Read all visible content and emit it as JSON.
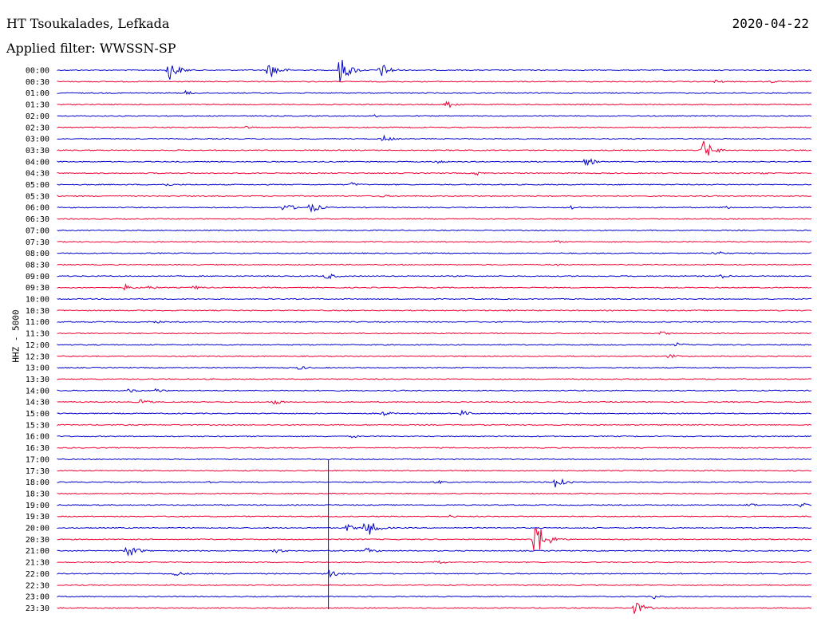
{
  "header": {
    "station": "HT Tsoukalades, Lefkada",
    "date": "2020-04-22",
    "filter": "Applied filter: WWSSN-SP",
    "channel": "HHZ - 5000"
  },
  "colors": {
    "even_trace": "#0000cc",
    "odd_trace": "#ee0033"
  },
  "traces": [
    {
      "time": "00:00",
      "events": [
        [
          0.147,
          14
        ],
        [
          0.28,
          12
        ],
        [
          0.374,
          18
        ],
        [
          0.428,
          10
        ]
      ]
    },
    {
      "time": "00:30",
      "events": [
        [
          0.87,
          3
        ],
        [
          0.945,
          2
        ]
      ]
    },
    {
      "time": "01:00",
      "events": [
        [
          0.17,
          3
        ]
      ]
    },
    {
      "time": "01:30",
      "events": [
        [
          0.515,
          6
        ]
      ]
    },
    {
      "time": "02:00",
      "events": [
        [
          0.42,
          2
        ]
      ]
    },
    {
      "time": "02:30",
      "events": [
        [
          0.25,
          2
        ]
      ]
    },
    {
      "time": "03:00",
      "events": [
        [
          0.43,
          5
        ]
      ]
    },
    {
      "time": "03:30",
      "events": [
        [
          0.855,
          14
        ]
      ]
    },
    {
      "time": "04:00",
      "events": [
        [
          0.5,
          3
        ],
        [
          0.7,
          6
        ]
      ]
    },
    {
      "time": "04:30",
      "events": [
        [
          0.555,
          3
        ],
        [
          0.93,
          2
        ]
      ]
    },
    {
      "time": "05:00",
      "events": [
        [
          0.14,
          3
        ],
        [
          0.39,
          3
        ]
      ]
    },
    {
      "time": "05:30",
      "events": [
        [
          0.43,
          2
        ]
      ]
    },
    {
      "time": "06:00",
      "events": [
        [
          0.3,
          6
        ],
        [
          0.335,
          7
        ],
        [
          0.68,
          3
        ],
        [
          0.88,
          3
        ]
      ]
    },
    {
      "time": "06:30",
      "events": []
    },
    {
      "time": "07:00",
      "events": []
    },
    {
      "time": "07:30",
      "events": [
        [
          0.66,
          2
        ]
      ]
    },
    {
      "time": "08:00",
      "events": [
        [
          0.87,
          4
        ]
      ]
    },
    {
      "time": "08:30",
      "events": [
        [
          0.66,
          2
        ]
      ]
    },
    {
      "time": "09:00",
      "events": [
        [
          0.355,
          5
        ],
        [
          0.88,
          3
        ]
      ]
    },
    {
      "time": "09:30",
      "events": [
        [
          0.09,
          4
        ],
        [
          0.12,
          3
        ],
        [
          0.18,
          3
        ]
      ]
    },
    {
      "time": "10:00",
      "events": []
    },
    {
      "time": "10:30",
      "events": [
        [
          0.6,
          2
        ]
      ]
    },
    {
      "time": "11:00",
      "events": [
        [
          0.13,
          2
        ]
      ]
    },
    {
      "time": "11:30",
      "events": [
        [
          0.8,
          3
        ]
      ]
    },
    {
      "time": "12:00",
      "events": [
        [
          0.82,
          3
        ]
      ]
    },
    {
      "time": "12:30",
      "events": [
        [
          0.81,
          3
        ]
      ]
    },
    {
      "time": "13:00",
      "events": [
        [
          0.32,
          3
        ]
      ]
    },
    {
      "time": "13:30",
      "events": []
    },
    {
      "time": "14:00",
      "events": [
        [
          0.095,
          3
        ],
        [
          0.13,
          3
        ]
      ]
    },
    {
      "time": "14:30",
      "events": [
        [
          0.11,
          4
        ],
        [
          0.285,
          4
        ]
      ]
    },
    {
      "time": "15:00",
      "events": [
        [
          0.43,
          4
        ],
        [
          0.535,
          4
        ]
      ]
    },
    {
      "time": "15:30",
      "events": []
    },
    {
      "time": "16:00",
      "events": [
        [
          0.39,
          2
        ]
      ]
    },
    {
      "time": "16:30",
      "events": []
    },
    {
      "time": "17:00",
      "events": []
    },
    {
      "time": "17:30",
      "events": []
    },
    {
      "time": "18:00",
      "events": [
        [
          0.66,
          10
        ],
        [
          0.2,
          2
        ],
        [
          0.5,
          3
        ]
      ]
    },
    {
      "time": "18:30",
      "events": []
    },
    {
      "time": "19:00",
      "events": [
        [
          0.915,
          3
        ],
        [
          0.985,
          3
        ]
      ]
    },
    {
      "time": "19:30",
      "events": [
        [
          0.15,
          2
        ],
        [
          0.52,
          2
        ]
      ]
    },
    {
      "time": "20:00",
      "events": [
        [
          0.383,
          5
        ],
        [
          0.408,
          14
        ]
      ]
    },
    {
      "time": "20:30",
      "events": [
        [
          0.632,
          28
        ]
      ]
    },
    {
      "time": "21:00",
      "events": [
        [
          0.092,
          10
        ],
        [
          0.287,
          4
        ],
        [
          0.41,
          4
        ]
      ]
    },
    {
      "time": "21:30",
      "events": [
        [
          0.5,
          4
        ]
      ]
    },
    {
      "time": "22:00",
      "events": [
        [
          0.155,
          4
        ],
        [
          0.36,
          5
        ]
      ]
    },
    {
      "time": "22:30",
      "events": []
    },
    {
      "time": "23:00",
      "events": [
        [
          0.79,
          3
        ]
      ]
    },
    {
      "time": "23:30",
      "events": [
        [
          0.765,
          9
        ]
      ]
    }
  ]
}
